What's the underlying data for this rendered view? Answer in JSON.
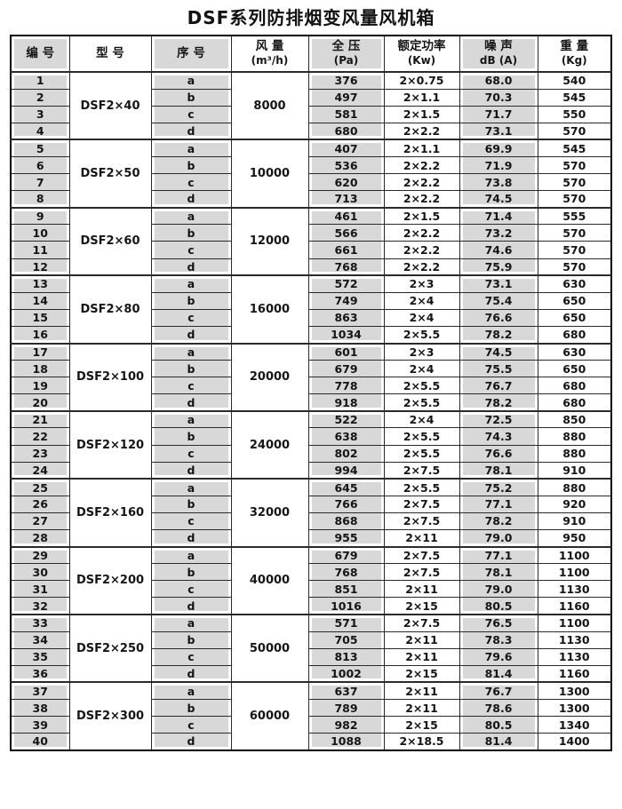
{
  "title": "DSF系列防排烟变风量风机箱",
  "table": {
    "columns": [
      {
        "label": "编 号",
        "unit": ""
      },
      {
        "label": "型 号",
        "unit": ""
      },
      {
        "label": "序 号",
        "unit": ""
      },
      {
        "label": "风 量",
        "unit": "(m³/h)"
      },
      {
        "label": "全 压",
        "unit": "(Pa)"
      },
      {
        "label": "额定功率",
        "unit": "(Kw)"
      },
      {
        "label": "噪 声",
        "unit": "dB (A)"
      },
      {
        "label": "重 量",
        "unit": "(Kg)"
      }
    ],
    "colors": {
      "cell_gray": "#d8d8d8",
      "border": "#000000",
      "text": "#151515"
    },
    "groups": [
      {
        "model": "DSF2×40",
        "airflow": "8000",
        "rows": [
          {
            "no": "1",
            "seq": "a",
            "pressure": "376",
            "power": "2×0.75",
            "noise": "68.0",
            "weight": "540"
          },
          {
            "no": "2",
            "seq": "b",
            "pressure": "497",
            "power": "2×1.1",
            "noise": "70.3",
            "weight": "545"
          },
          {
            "no": "3",
            "seq": "c",
            "pressure": "581",
            "power": "2×1.5",
            "noise": "71.7",
            "weight": "550"
          },
          {
            "no": "4",
            "seq": "d",
            "pressure": "680",
            "power": "2×2.2",
            "noise": "73.1",
            "weight": "570"
          }
        ]
      },
      {
        "model": "DSF2×50",
        "airflow": "10000",
        "rows": [
          {
            "no": "5",
            "seq": "a",
            "pressure": "407",
            "power": "2×1.1",
            "noise": "69.9",
            "weight": "545"
          },
          {
            "no": "6",
            "seq": "b",
            "pressure": "536",
            "power": "2×2.2",
            "noise": "71.9",
            "weight": "570"
          },
          {
            "no": "7",
            "seq": "c",
            "pressure": "620",
            "power": "2×2.2",
            "noise": "73.8",
            "weight": "570"
          },
          {
            "no": "8",
            "seq": "d",
            "pressure": "713",
            "power": "2×2.2",
            "noise": "74.5",
            "weight": "570"
          }
        ]
      },
      {
        "model": "DSF2×60",
        "airflow": "12000",
        "rows": [
          {
            "no": "9",
            "seq": "a",
            "pressure": "461",
            "power": "2×1.5",
            "noise": "71.4",
            "weight": "555"
          },
          {
            "no": "10",
            "seq": "b",
            "pressure": "566",
            "power": "2×2.2",
            "noise": "73.2",
            "weight": "570"
          },
          {
            "no": "11",
            "seq": "c",
            "pressure": "661",
            "power": "2×2.2",
            "noise": "74.6",
            "weight": "570"
          },
          {
            "no": "12",
            "seq": "d",
            "pressure": "768",
            "power": "2×2.2",
            "noise": "75.9",
            "weight": "570"
          }
        ]
      },
      {
        "model": "DSF2×80",
        "airflow": "16000",
        "rows": [
          {
            "no": "13",
            "seq": "a",
            "pressure": "572",
            "power": "2×3",
            "noise": "73.1",
            "weight": "630"
          },
          {
            "no": "14",
            "seq": "b",
            "pressure": "749",
            "power": "2×4",
            "noise": "75.4",
            "weight": "650"
          },
          {
            "no": "15",
            "seq": "c",
            "pressure": "863",
            "power": "2×4",
            "noise": "76.6",
            "weight": "650"
          },
          {
            "no": "16",
            "seq": "d",
            "pressure": "1034",
            "power": "2×5.5",
            "noise": "78.2",
            "weight": "680"
          }
        ]
      },
      {
        "model": "DSF2×100",
        "airflow": "20000",
        "rows": [
          {
            "no": "17",
            "seq": "a",
            "pressure": "601",
            "power": "2×3",
            "noise": "74.5",
            "weight": "630"
          },
          {
            "no": "18",
            "seq": "b",
            "pressure": "679",
            "power": "2×4",
            "noise": "75.5",
            "weight": "650"
          },
          {
            "no": "19",
            "seq": "c",
            "pressure": "778",
            "power": "2×5.5",
            "noise": "76.7",
            "weight": "680"
          },
          {
            "no": "20",
            "seq": "d",
            "pressure": "918",
            "power": "2×5.5",
            "noise": "78.2",
            "weight": "680"
          }
        ]
      },
      {
        "model": "DSF2×120",
        "airflow": "24000",
        "rows": [
          {
            "no": "21",
            "seq": "a",
            "pressure": "522",
            "power": "2×4",
            "noise": "72.5",
            "weight": "850"
          },
          {
            "no": "22",
            "seq": "b",
            "pressure": "638",
            "power": "2×5.5",
            "noise": "74.3",
            "weight": "880"
          },
          {
            "no": "23",
            "seq": "c",
            "pressure": "802",
            "power": "2×5.5",
            "noise": "76.6",
            "weight": "880"
          },
          {
            "no": "24",
            "seq": "d",
            "pressure": "994",
            "power": "2×7.5",
            "noise": "78.1",
            "weight": "910"
          }
        ]
      },
      {
        "model": "DSF2×160",
        "airflow": "32000",
        "rows": [
          {
            "no": "25",
            "seq": "a",
            "pressure": "645",
            "power": "2×5.5",
            "noise": "75.2",
            "weight": "880"
          },
          {
            "no": "26",
            "seq": "b",
            "pressure": "766",
            "power": "2×7.5",
            "noise": "77.1",
            "weight": "920"
          },
          {
            "no": "27",
            "seq": "c",
            "pressure": "868",
            "power": "2×7.5",
            "noise": "78.2",
            "weight": "910"
          },
          {
            "no": "28",
            "seq": "d",
            "pressure": "955",
            "power": "2×11",
            "noise": "79.0",
            "weight": "950"
          }
        ]
      },
      {
        "model": "DSF2×200",
        "airflow": "40000",
        "rows": [
          {
            "no": "29",
            "seq": "a",
            "pressure": "679",
            "power": "2×7.5",
            "noise": "77.1",
            "weight": "1100"
          },
          {
            "no": "30",
            "seq": "b",
            "pressure": "768",
            "power": "2×7.5",
            "noise": "78.1",
            "weight": "1100"
          },
          {
            "no": "31",
            "seq": "c",
            "pressure": "851",
            "power": "2×11",
            "noise": "79.0",
            "weight": "1130"
          },
          {
            "no": "32",
            "seq": "d",
            "pressure": "1016",
            "power": "2×15",
            "noise": "80.5",
            "weight": "1160"
          }
        ]
      },
      {
        "model": "DSF2×250",
        "airflow": "50000",
        "rows": [
          {
            "no": "33",
            "seq": "a",
            "pressure": "571",
            "power": "2×7.5",
            "noise": "76.5",
            "weight": "1100"
          },
          {
            "no": "34",
            "seq": "b",
            "pressure": "705",
            "power": "2×11",
            "noise": "78.3",
            "weight": "1130"
          },
          {
            "no": "35",
            "seq": "c",
            "pressure": "813",
            "power": "2×11",
            "noise": "79.6",
            "weight": "1130"
          },
          {
            "no": "36",
            "seq": "d",
            "pressure": "1002",
            "power": "2×15",
            "noise": "81.4",
            "weight": "1160"
          }
        ]
      },
      {
        "model": "DSF2×300",
        "airflow": "60000",
        "rows": [
          {
            "no": "37",
            "seq": "a",
            "pressure": "637",
            "power": "2×11",
            "noise": "76.7",
            "weight": "1300"
          },
          {
            "no": "38",
            "seq": "b",
            "pressure": "789",
            "power": "2×11",
            "noise": "78.6",
            "weight": "1300"
          },
          {
            "no": "39",
            "seq": "c",
            "pressure": "982",
            "power": "2×15",
            "noise": "80.5",
            "weight": "1340"
          },
          {
            "no": "40",
            "seq": "d",
            "pressure": "1088",
            "power": "2×18.5",
            "noise": "81.4",
            "weight": "1400"
          }
        ]
      }
    ]
  }
}
